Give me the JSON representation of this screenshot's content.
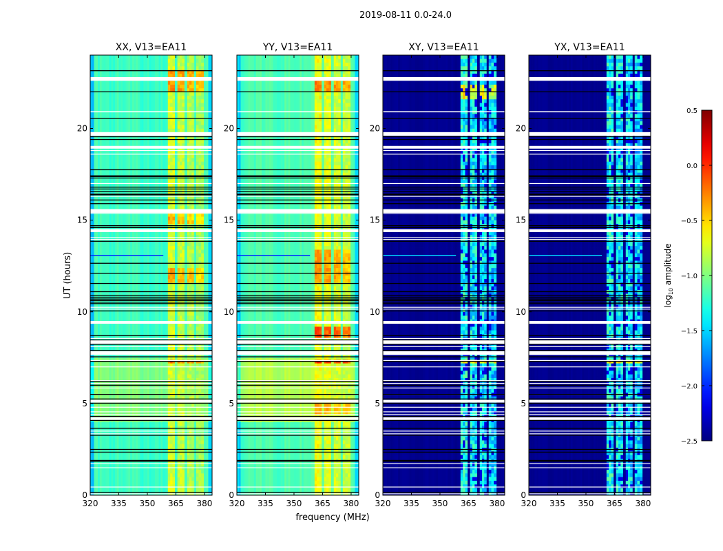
{
  "figure": {
    "suptitle": "2019-08-11 0.0-24.0",
    "ylabel": "UT (hours)",
    "xlabel": "frequency (MHz)",
    "colorbar": {
      "label_pre": "log",
      "label_sub": "10",
      "label_post": " amplitude",
      "range": [
        -2.5,
        0.5
      ],
      "ticks": [
        "0.5",
        "0.0",
        "−0.5",
        "−1.0",
        "−1.5",
        "−2.0",
        "−2.5"
      ],
      "tick_values": [
        0.5,
        0.0,
        -0.5,
        -1.0,
        -1.5,
        -2.0,
        -2.5
      ],
      "colormap": "jet"
    }
  },
  "chart_data": [
    {
      "type": "heatmap",
      "title": "XX, V13=EA11",
      "xlabel": "frequency (MHz)",
      "ylabel": "UT (hours)",
      "xlim": [
        320,
        384
      ],
      "ylim": [
        0,
        24
      ],
      "xticks": [
        "320",
        "335",
        "350",
        "365",
        "380"
      ],
      "xtick_values": [
        320,
        335,
        350,
        365,
        380
      ],
      "yticks": [
        "0",
        "5",
        "10",
        "15",
        "20"
      ],
      "ytick_values": [
        0,
        5,
        10,
        15,
        20
      ],
      "base_level": -1.2,
      "base_ranges": [
        {
          "hours": [
            3.6,
            7.5
          ],
          "level": -1.0
        }
      ],
      "bands": [
        [
          360.8,
          364.4
        ],
        [
          365.8,
          369.4
        ],
        [
          370.9,
          374.4
        ],
        [
          375.6,
          379.6
        ]
      ],
      "band_level": -0.75,
      "hot_ranges": [
        {
          "hours": [
            21.8,
            23.1
          ],
          "level": -0.3
        },
        {
          "hours": [
            11.4,
            12.3
          ],
          "level": -0.35
        },
        {
          "hours": [
            7.2,
            7.4
          ],
          "level": -0.25
        },
        {
          "hours": [
            14.7,
            15.4
          ],
          "level": -0.4
        }
      ],
      "noise": 0.12
    },
    {
      "type": "heatmap",
      "title": "YY, V13=EA11",
      "xlabel": "frequency (MHz)",
      "ylabel": "UT (hours)",
      "xlim": [
        320,
        384
      ],
      "ylim": [
        0,
        24
      ],
      "xticks": [
        "320",
        "335",
        "350",
        "365",
        "380"
      ],
      "xtick_values": [
        320,
        335,
        350,
        365,
        380
      ],
      "yticks": [
        "0",
        "5",
        "10",
        "15",
        "20"
      ],
      "ytick_values": [
        0,
        5,
        10,
        15,
        20
      ],
      "base_level": -1.15,
      "base_ranges": [
        {
          "hours": [
            3.6,
            7.5
          ],
          "level": -0.85
        }
      ],
      "bands": [
        [
          360.8,
          364.4
        ],
        [
          365.8,
          369.4
        ],
        [
          370.9,
          374.4
        ],
        [
          375.6,
          379.6
        ]
      ],
      "band_level": -0.65,
      "hot_ranges": [
        {
          "hours": [
            21.8,
            22.7
          ],
          "level": -0.25
        },
        {
          "hours": [
            11.4,
            13.2
          ],
          "level": -0.3
        },
        {
          "hours": [
            8.6,
            9.2
          ],
          "level": -0.1
        },
        {
          "hours": [
            7.2,
            7.4
          ],
          "level": 0.0
        },
        {
          "hours": [
            4.4,
            5.0
          ],
          "level": -0.35
        }
      ],
      "noise": 0.12
    },
    {
      "type": "heatmap",
      "title": "XY, V13=EA11",
      "xlabel": "frequency (MHz)",
      "ylabel": "UT (hours)",
      "xlim": [
        320,
        384
      ],
      "ylim": [
        0,
        24
      ],
      "xticks": [
        "320",
        "335",
        "350",
        "365",
        "380"
      ],
      "xtick_values": [
        320,
        335,
        350,
        365,
        380
      ],
      "yticks": [
        "0",
        "5",
        "10",
        "15",
        "20"
      ],
      "ytick_values": [
        0,
        5,
        10,
        15,
        20
      ],
      "base_level": -2.45,
      "base_ranges": [],
      "bands": [
        [
          360.8,
          364.4
        ],
        [
          365.8,
          369.4
        ],
        [
          370.9,
          374.4
        ],
        [
          375.6,
          379.6
        ]
      ],
      "band_level": -1.35,
      "hot_ranges": [
        {
          "hours": [
            21.5,
            22.3
          ],
          "level": -0.7
        },
        {
          "hours": [
            7.2,
            7.4
          ],
          "level": -0.6
        }
      ],
      "noise": 0.3
    },
    {
      "type": "heatmap",
      "title": "YX, V13=EA11",
      "xlabel": "frequency (MHz)",
      "ylabel": "UT (hours)",
      "xlim": [
        320,
        384
      ],
      "ylim": [
        0,
        24
      ],
      "xticks": [
        "320",
        "335",
        "350",
        "365",
        "380"
      ],
      "xtick_values": [
        320,
        335,
        350,
        365,
        380
      ],
      "yticks": [
        "0",
        "5",
        "10",
        "15",
        "20"
      ],
      "ytick_values": [
        0,
        5,
        10,
        15,
        20
      ],
      "base_level": -2.45,
      "base_ranges": [],
      "bands": [
        [
          360.8,
          364.4
        ],
        [
          365.8,
          369.4
        ],
        [
          370.9,
          374.4
        ],
        [
          375.6,
          379.6
        ]
      ],
      "band_level": -1.35,
      "hot_ranges": [
        {
          "hours": [
            7.2,
            7.4
          ],
          "level": -0.6
        }
      ],
      "noise": 0.3
    }
  ],
  "flagged_hours_white": [
    [
      22.6,
      22.8
    ],
    [
      20.88,
      20.94
    ],
    [
      19.6,
      19.8
    ],
    [
      18.9,
      19.05
    ],
    [
      18.78,
      18.82
    ],
    [
      18.58,
      18.62
    ],
    [
      16.98,
      17.02
    ],
    [
      16.28,
      16.32
    ],
    [
      15.4,
      15.6
    ],
    [
      15.33,
      15.37
    ],
    [
      14.35,
      14.5
    ],
    [
      14.03,
      14.07
    ],
    [
      13.93,
      13.97
    ],
    [
      10.23,
      10.27
    ],
    [
      10.13,
      10.17
    ],
    [
      9.35,
      9.5
    ],
    [
      8.53,
      8.57
    ],
    [
      8.25,
      8.45
    ],
    [
      8.08,
      8.12
    ],
    [
      7.65,
      7.85
    ],
    [
      7.33,
      7.37
    ],
    [
      6.98,
      7.02
    ],
    [
      6.23,
      6.27
    ],
    [
      6.08,
      6.12
    ],
    [
      5.83,
      5.87
    ],
    [
      5.48,
      5.52
    ],
    [
      5.05,
      5.2
    ],
    [
      4.78,
      4.82
    ],
    [
      4.53,
      4.57
    ],
    [
      4.38,
      4.42
    ],
    [
      4.1,
      4.25
    ],
    [
      3.48,
      3.52
    ],
    [
      3.33,
      3.37
    ],
    [
      1.7,
      1.74
    ],
    [
      1.48,
      1.52
    ],
    [
      0.43,
      0.47
    ],
    [
      0.06,
      0.1
    ]
  ],
  "flagged_hours_black": [
    23.15,
    22.0,
    20.55,
    19.55,
    19.4,
    17.75,
    17.42,
    17.38,
    17.3,
    16.8,
    16.7,
    16.55,
    16.42,
    16.38,
    16.1,
    15.9,
    14.7,
    14.6,
    13.85,
    12.65,
    12.1,
    11.55,
    11.1,
    10.9,
    10.8,
    10.7,
    10.62,
    10.53,
    10.45,
    10.05,
    8.7,
    8.47,
    8.23,
    7.9,
    7.55,
    7.3,
    6.2,
    6.0,
    5.5,
    5.25,
    5.02,
    4.3,
    4.08,
    3.65,
    3.27,
    2.5,
    2.35,
    1.9,
    1.85,
    0.15
  ],
  "rfi_hour": 13.07
}
